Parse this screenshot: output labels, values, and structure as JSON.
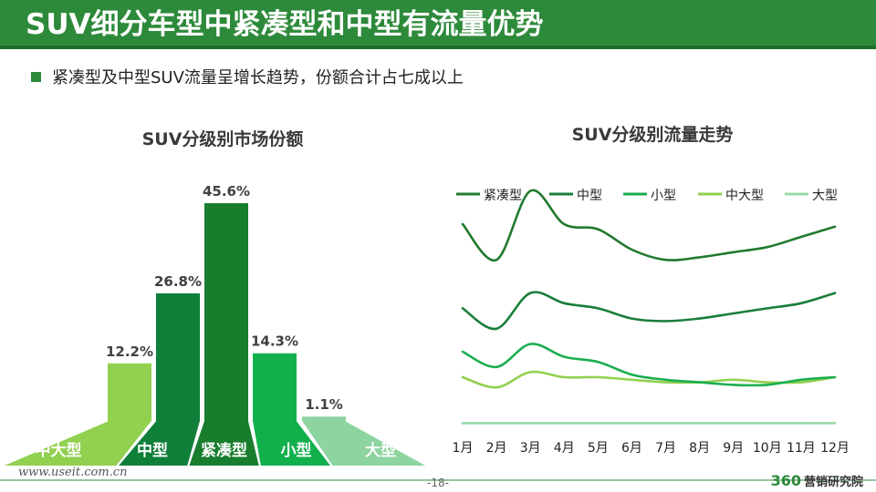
{
  "header": {
    "title": "SUV细分车型中紧凑型和中型有流量优势",
    "subtitle": "紧凑型及中型SUV流量呈增长趋势，份额合计占七成以上"
  },
  "chart_data": [
    {
      "type": "bar",
      "title": "SUV分级别市场份额",
      "categories": [
        "中大型",
        "中型",
        "紧凑型",
        "小型",
        "大型"
      ],
      "values": [
        12.2,
        26.8,
        45.6,
        14.3,
        1.1
      ],
      "value_labels": [
        "12.2%",
        "26.8%",
        "45.6%",
        "14.3%",
        "1.1%"
      ],
      "unit": "%",
      "colors": [
        "#92d050",
        "#0f7f3a",
        "#197d2e",
        "#12b04d",
        "#8dd4a0"
      ]
    },
    {
      "type": "line",
      "title": "SUV分级别流量走势",
      "categories": [
        "1月",
        "2月",
        "3月",
        "4月",
        "5月",
        "6月",
        "7月",
        "8月",
        "9月",
        "10月",
        "11月",
        "12月"
      ],
      "ylim": [
        0,
        10
      ],
      "legend_position": "top",
      "series": [
        {
          "name": "紧凑型",
          "color": "#217a2e",
          "values": [
            8.0,
            6.6,
            9.3,
            8.0,
            7.8,
            7.0,
            6.6,
            6.7,
            6.9,
            7.1,
            7.5,
            7.9
          ]
        },
        {
          "name": "中型",
          "color": "#1a7d3a",
          "values": [
            4.7,
            3.9,
            5.3,
            4.9,
            4.7,
            4.3,
            4.2,
            4.3,
            4.5,
            4.7,
            4.9,
            5.3
          ]
        },
        {
          "name": "小型",
          "color": "#1aae4f",
          "values": [
            3.0,
            2.4,
            3.3,
            2.8,
            2.6,
            2.1,
            1.9,
            1.8,
            1.7,
            1.7,
            1.9,
            2.0
          ]
        },
        {
          "name": "中大型",
          "color": "#92d050",
          "values": [
            2.0,
            1.6,
            2.2,
            2.0,
            2.0,
            1.9,
            1.8,
            1.8,
            1.9,
            1.8,
            1.8,
            2.0
          ]
        },
        {
          "name": "大型",
          "color": "#99d8a8",
          "values": [
            0.2,
            0.2,
            0.2,
            0.2,
            0.2,
            0.2,
            0.2,
            0.2,
            0.2,
            0.2,
            0.2,
            0.2
          ]
        }
      ]
    }
  ],
  "footer": {
    "url": "www.useit.com.cn",
    "page": "-18-",
    "brand_number": "360",
    "brand_text": "营销研究院"
  }
}
